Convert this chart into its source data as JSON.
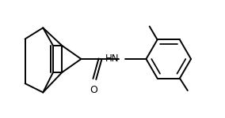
{
  "bg_color": "#ffffff",
  "line_color": "#000000",
  "line_width": 1.4,
  "font_size_nh": 8.5,
  "font_size_o": 9,
  "figsize": [
    2.84,
    1.5
  ],
  "dpi": 100,
  "xlim": [
    0,
    10
  ],
  "ylim": [
    0,
    5.3
  ]
}
